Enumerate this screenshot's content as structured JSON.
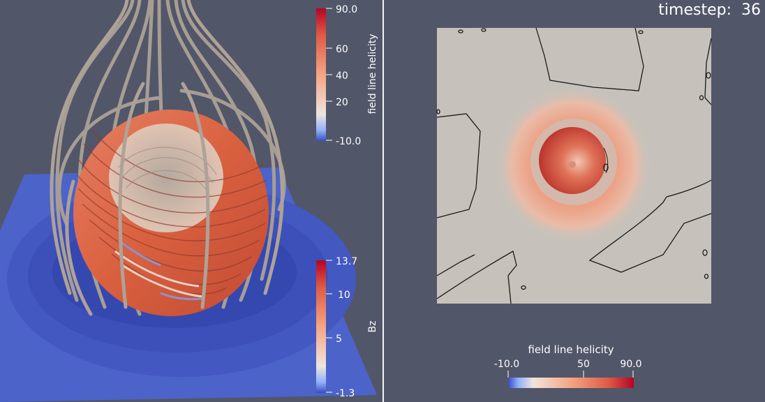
{
  "left_view": {
    "colorbar_helicity": {
      "title": "field line helicity",
      "ticks": [
        "90.0",
        "60",
        "40",
        "20",
        "-10.0"
      ]
    },
    "colorbar_bz": {
      "title": "Bz",
      "ticks": [
        "13.7",
        "10",
        "5",
        "-1.3"
      ]
    }
  },
  "right_view": {
    "timestep": {
      "label": "timestep:",
      "value": "36"
    },
    "colorbar_helicity": {
      "title": "field line helicity",
      "ticks": [
        "-10.0",
        "50",
        "90.0"
      ]
    }
  },
  "colors": {
    "background": "#525669",
    "field_line_gray": "#a79d93",
    "helicity_low": "#3b4cc0",
    "helicity_mid": "#f0e4dc",
    "helicity_high": "#b40426",
    "plane_blue": "#4d66c9",
    "slice_gray": "#c6c2bb"
  }
}
